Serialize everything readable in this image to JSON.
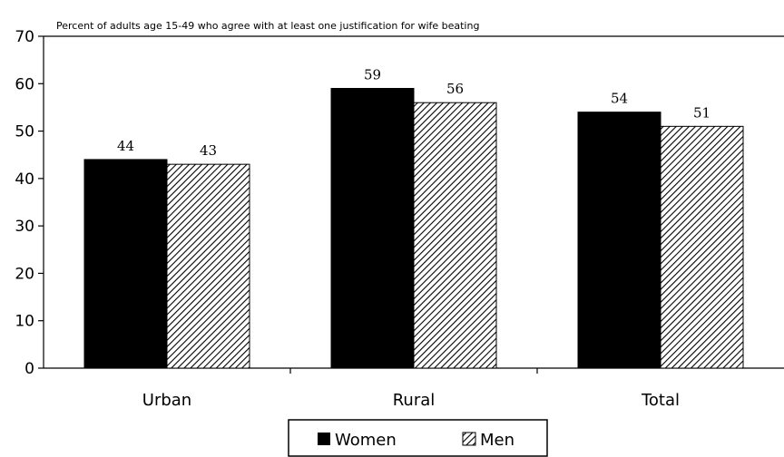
{
  "chart_data": {
    "type": "bar",
    "title": "Percent of adults age 15-49 who agree with at least one justification for wife beating",
    "categories": [
      "Urban",
      "Rural",
      "Total"
    ],
    "series": [
      {
        "name": "Women",
        "values": [
          44,
          59,
          54
        ],
        "color": "#000000",
        "fill": "solid"
      },
      {
        "name": "Men",
        "values": [
          43,
          56,
          51
        ],
        "color": "#000000",
        "fill": "diagonal-hatch"
      }
    ],
    "ylim": [
      0,
      70
    ],
    "yticks": [
      0,
      10,
      20,
      30,
      40,
      50,
      60,
      70
    ],
    "grid": false,
    "legend": "bottom-center"
  }
}
